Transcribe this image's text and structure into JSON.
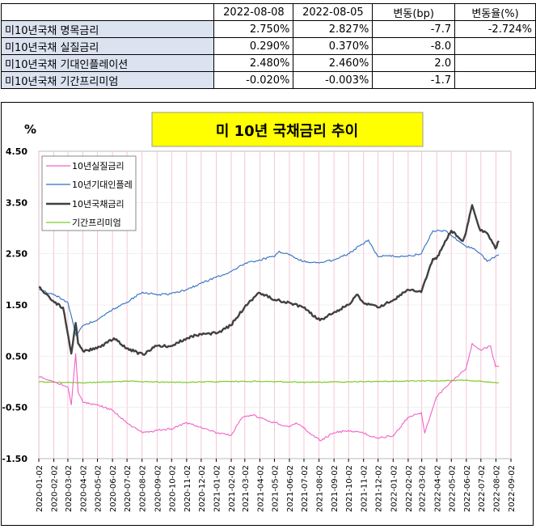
{
  "table": {
    "headers": [
      "",
      "2022-08-08",
      "2022-08-05",
      "변동(bp)",
      "변동율(%)"
    ],
    "rows": [
      {
        "label": "미10년국채 명목금리",
        "values": [
          "2.750%",
          "2.827%",
          "-7.7",
          "-2.724%"
        ]
      },
      {
        "label": "미10년국채 실질금리",
        "values": [
          "0.290%",
          "0.370%",
          "-8.0",
          ""
        ]
      },
      {
        "label": "미10년국채 기대인플레이션",
        "values": [
          "2.480%",
          "2.460%",
          "2.0",
          ""
        ]
      },
      {
        "label": "미10년국채 기간프리미엄",
        "values": [
          "-0.020%",
          "-0.003%",
          "-1.7",
          ""
        ]
      }
    ]
  },
  "colors": {
    "real": "#f062c8",
    "inflation": "#2e6fc0",
    "nominal": "#404040",
    "term": "#7ccc2a",
    "title_bg": "#ffff00",
    "row_label_bg": "#dbe3f0",
    "grid": "#f2b8cc"
  },
  "chart_data": {
    "type": "line",
    "title": "미 10년 국채금리 추이",
    "ylabel": "%",
    "ylim": [
      -1.5,
      4.5
    ],
    "yticks": [
      "4.50",
      "3.50",
      "2.50",
      "1.50",
      "0.50",
      "-0.50",
      "-1.50"
    ],
    "ytick_values": [
      4.5,
      3.5,
      2.5,
      1.5,
      0.5,
      -0.5,
      -1.5
    ],
    "xticks": [
      "2020-01-02",
      "2020-02-02",
      "2020-03-02",
      "2020-04-02",
      "2020-05-02",
      "2020-06-02",
      "2020-07-02",
      "2020-08-02",
      "2020-09-02",
      "2020-10-02",
      "2020-11-02",
      "2020-12-02",
      "2021-01-02",
      "2021-02-02",
      "2021-03-02",
      "2021-04-02",
      "2021-05-02",
      "2021-06-02",
      "2021-07-02",
      "2021-08-02",
      "2021-09-02",
      "2021-10-02",
      "2021-11-02",
      "2021-12-02",
      "2022-01-02",
      "2022-02-02",
      "2022-03-02",
      "2022-04-02",
      "2022-05-02",
      "2022-06-02",
      "2022-07-02",
      "2022-08-02",
      "2022-09-02"
    ],
    "grid": true,
    "legend_position": "top-left",
    "series": [
      {
        "name": "10년실질금리",
        "key": "real",
        "x": [
          "2020-01-02",
          "2020-02-03",
          "2020-03-02",
          "2020-03-09",
          "2020-03-18",
          "2020-03-23",
          "2020-04-02",
          "2020-05-01",
          "2020-06-01",
          "2020-07-01",
          "2020-08-03",
          "2020-09-01",
          "2020-10-01",
          "2020-11-02",
          "2020-12-01",
          "2021-01-04",
          "2021-02-01",
          "2021-02-25",
          "2021-03-19",
          "2021-04-01",
          "2021-05-03",
          "2021-06-01",
          "2021-06-16",
          "2021-07-01",
          "2021-08-04",
          "2021-09-01",
          "2021-10-01",
          "2021-11-01",
          "2021-12-01",
          "2022-01-03",
          "2022-02-01",
          "2022-03-01",
          "2022-03-08",
          "2022-04-01",
          "2022-05-02",
          "2022-06-01",
          "2022-06-14",
          "2022-07-01",
          "2022-07-22",
          "2022-08-01",
          "2022-08-08"
        ],
        "values": [
          0.1,
          0.0,
          -0.1,
          -0.45,
          0.55,
          -0.2,
          -0.4,
          -0.45,
          -0.55,
          -0.8,
          -1.0,
          -0.95,
          -0.92,
          -0.8,
          -0.88,
          -1.0,
          -1.05,
          -0.7,
          -0.65,
          -0.7,
          -0.8,
          -0.88,
          -0.8,
          -0.9,
          -1.15,
          -1.0,
          -0.95,
          -1.0,
          -1.1,
          -1.05,
          -0.7,
          -0.6,
          -1.0,
          -0.3,
          0.0,
          0.25,
          0.75,
          0.62,
          0.7,
          0.3,
          0.29
        ]
      },
      {
        "name": "10년기대인플레",
        "key": "inflation",
        "x": [
          "2020-01-02",
          "2020-02-03",
          "2020-03-02",
          "2020-03-19",
          "2020-04-02",
          "2020-05-01",
          "2020-06-01",
          "2020-07-01",
          "2020-08-03",
          "2020-09-01",
          "2020-10-01",
          "2020-11-02",
          "2020-12-01",
          "2021-01-04",
          "2021-02-01",
          "2021-03-01",
          "2021-04-01",
          "2021-05-03",
          "2021-05-12",
          "2021-06-01",
          "2021-07-01",
          "2021-08-02",
          "2021-09-01",
          "2021-10-01",
          "2021-11-12",
          "2021-12-01",
          "2022-01-03",
          "2022-02-01",
          "2022-03-01",
          "2022-03-25",
          "2022-04-21",
          "2022-05-02",
          "2022-06-01",
          "2022-06-15",
          "2022-07-01",
          "2022-07-15",
          "2022-08-01",
          "2022-08-08"
        ],
        "values": [
          1.8,
          1.7,
          1.55,
          0.9,
          1.1,
          1.2,
          1.4,
          1.55,
          1.75,
          1.7,
          1.72,
          1.8,
          1.92,
          2.05,
          2.15,
          2.3,
          2.38,
          2.45,
          2.55,
          2.48,
          2.35,
          2.32,
          2.38,
          2.5,
          2.77,
          2.45,
          2.45,
          2.45,
          2.5,
          2.95,
          2.95,
          2.85,
          2.65,
          2.6,
          2.5,
          2.35,
          2.45,
          2.48
        ]
      },
      {
        "name": "10년국채금리",
        "key": "nominal",
        "x": [
          "2020-01-02",
          "2020-02-03",
          "2020-02-21",
          "2020-03-09",
          "2020-03-18",
          "2020-03-23",
          "2020-04-02",
          "2020-05-01",
          "2020-06-05",
          "2020-07-01",
          "2020-08-04",
          "2020-09-01",
          "2020-10-01",
          "2020-11-02",
          "2020-12-01",
          "2021-01-04",
          "2021-02-01",
          "2021-03-01",
          "2021-03-31",
          "2021-05-03",
          "2021-06-01",
          "2021-07-01",
          "2021-08-04",
          "2021-09-01",
          "2021-10-01",
          "2021-10-21",
          "2021-11-01",
          "2021-12-01",
          "2022-01-03",
          "2022-02-01",
          "2022-03-01",
          "2022-03-25",
          "2022-04-01",
          "2022-05-02",
          "2022-05-26",
          "2022-06-01",
          "2022-06-14",
          "2022-07-01",
          "2022-07-15",
          "2022-08-01",
          "2022-08-08"
        ],
        "values": [
          1.85,
          1.55,
          1.45,
          0.55,
          1.15,
          0.75,
          0.6,
          0.65,
          0.85,
          0.65,
          0.53,
          0.7,
          0.7,
          0.85,
          0.93,
          0.95,
          1.1,
          1.45,
          1.74,
          1.6,
          1.55,
          1.45,
          1.2,
          1.35,
          1.5,
          1.7,
          1.55,
          1.45,
          1.6,
          1.8,
          1.75,
          2.4,
          2.4,
          2.95,
          2.75,
          2.9,
          3.45,
          2.95,
          2.9,
          2.6,
          2.75
        ]
      },
      {
        "name": "기간프리미엄",
        "key": "term",
        "x": [
          "2020-01-02",
          "2020-04-01",
          "2020-07-01",
          "2020-10-01",
          "2021-01-04",
          "2021-04-01",
          "2021-07-01",
          "2021-10-01",
          "2022-01-03",
          "2022-04-01",
          "2022-06-01",
          "2022-07-01",
          "2022-08-08"
        ],
        "values": [
          0.0,
          -0.02,
          0.01,
          -0.01,
          0.0,
          0.01,
          -0.01,
          0.0,
          0.01,
          0.02,
          0.03,
          0.01,
          -0.02
        ]
      }
    ]
  }
}
